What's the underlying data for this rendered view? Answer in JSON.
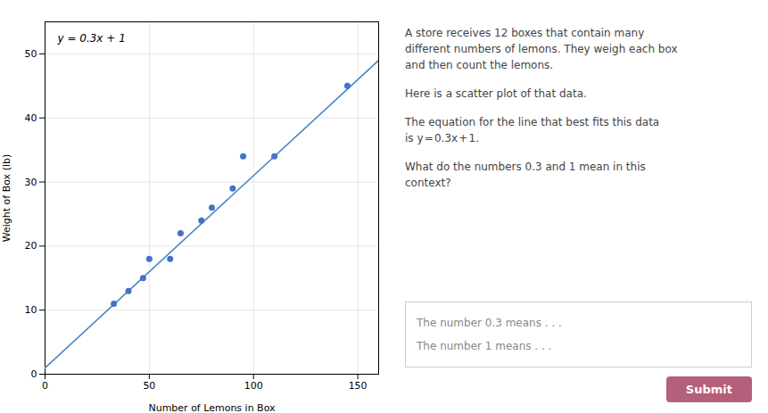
{
  "chart_data": {
    "type": "scatter",
    "x": [
      33,
      40,
      47,
      50,
      60,
      65,
      75,
      80,
      90,
      95,
      110,
      145
    ],
    "y": [
      11,
      13,
      15,
      18,
      18,
      22,
      24,
      26,
      29,
      34,
      34,
      45
    ],
    "color": "#4472c4",
    "marker": "circle",
    "xlabel": "Number of Lemons in Box",
    "ylabel": "Weight of Box (lb)",
    "xlim": [
      0,
      160
    ],
    "ylim": [
      0,
      55
    ],
    "xticks": [
      0,
      50,
      100,
      150
    ],
    "yticks": [
      0,
      10,
      20,
      30,
      40,
      50
    ],
    "grid": true,
    "fit_line": {
      "x": [
        0,
        160
      ],
      "y": [
        1,
        49
      ],
      "color": "#4a86c8"
    },
    "annotations": [
      "y = 0.3x + 1",
      "A store receives  12  boxes that contain many",
      "different numbers of lemons. They weigh each box",
      "and then count the lemons.",
      "Here is a scatter plot of that data.",
      "The equation for the line that best fits this data",
      "is y = 0.3x + 1.",
      "What do the numbers  0.3  and  1  mean in this",
      "context?",
      "The number  0.3  means . . .",
      "The number  1  means . . .",
      "Submit"
    ]
  }
}
